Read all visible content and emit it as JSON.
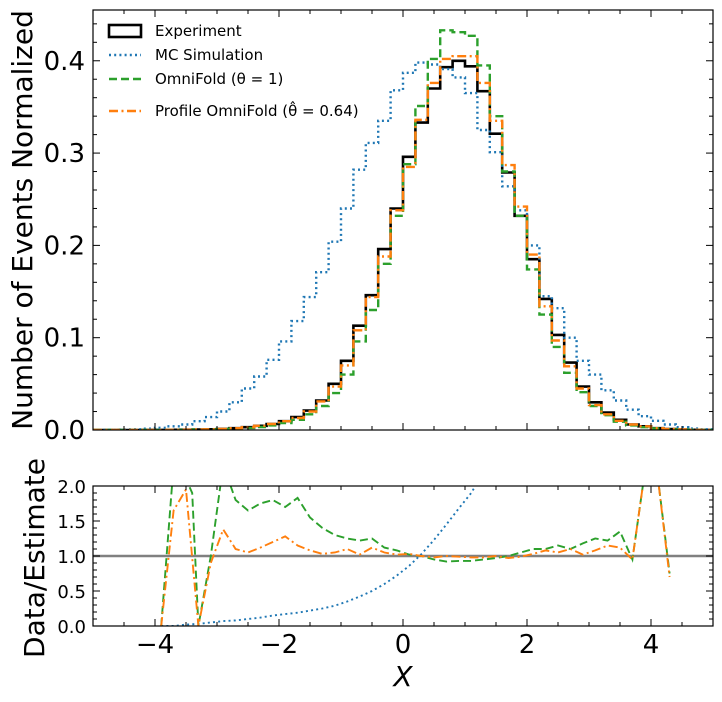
{
  "chart_data": [
    {
      "type": "line",
      "panel": "main",
      "ylabel": "Number of Events Normalized",
      "xlim": [
        -5,
        5
      ],
      "ylim": [
        0,
        0.455
      ],
      "xticks": [
        -4,
        -2,
        0,
        2,
        4
      ],
      "yticks": [
        0.0,
        0.1,
        0.2,
        0.3,
        0.4
      ],
      "ytick_labels": [
        "0.0",
        "0.1",
        "0.2",
        "0.3",
        "0.4"
      ],
      "bin_edges": [
        -5.0,
        -4.8,
        -4.6,
        -4.4,
        -4.2,
        -4.0,
        -3.8,
        -3.6,
        -3.4,
        -3.2,
        -3.0,
        -2.8,
        -2.6,
        -2.4,
        -2.2,
        -2.0,
        -1.8,
        -1.6,
        -1.4,
        -1.2,
        -1.0,
        -0.8,
        -0.6,
        -0.4,
        -0.2,
        0.0,
        0.2,
        0.4,
        0.6,
        0.8,
        1.0,
        1.2,
        1.4,
        1.6,
        1.8,
        2.0,
        2.2,
        2.4,
        2.6,
        2.8,
        3.0,
        3.2,
        3.4,
        3.6,
        3.8,
        4.0,
        4.2,
        4.4,
        4.6,
        4.8,
        5.0
      ],
      "legend_position": "top-left",
      "series": [
        {
          "name": "Experiment",
          "style": "solid",
          "color": "#000000",
          "values": [
            0.0,
            0.0,
            0.0,
            0.0,
            0.0001,
            0.0001,
            0.0002,
            0.0003,
            0.0005,
            0.0008,
            0.0012,
            0.002,
            0.003,
            0.0045,
            0.0065,
            0.0095,
            0.014,
            0.021,
            0.032,
            0.05,
            0.075,
            0.113,
            0.146,
            0.196,
            0.24,
            0.296,
            0.333,
            0.37,
            0.393,
            0.4,
            0.394,
            0.367,
            0.321,
            0.279,
            0.232,
            0.185,
            0.142,
            0.103,
            0.073,
            0.047,
            0.03,
            0.019,
            0.011,
            0.006,
            0.004,
            0.002,
            0.001,
            0.0005,
            0.0002,
            0.0001
          ]
        },
        {
          "name": "MC Simulation",
          "style": "dotted",
          "color": "#1f77b4",
          "values": [
            0.0001,
            0.0002,
            0.0004,
            0.0008,
            0.0014,
            0.0024,
            0.004,
            0.006,
            0.0095,
            0.014,
            0.02,
            0.03,
            0.045,
            0.058,
            0.076,
            0.096,
            0.118,
            0.144,
            0.171,
            0.204,
            0.24,
            0.282,
            0.311,
            0.335,
            0.368,
            0.387,
            0.398,
            0.396,
            0.391,
            0.382,
            0.365,
            0.325,
            0.301,
            0.264,
            0.238,
            0.2,
            0.145,
            0.132,
            0.1,
            0.075,
            0.06,
            0.043,
            0.032,
            0.022,
            0.015,
            0.01,
            0.006,
            0.003,
            0.0015,
            0.0008
          ]
        },
        {
          "name": "OmniFold (θ = 1)",
          "style": "dashed",
          "color": "#2ca02c",
          "values": [
            0.0,
            0.0,
            0.0,
            0.0,
            0.0,
            0.0,
            0.0001,
            0.0002,
            0.0004,
            0.0006,
            0.001,
            0.0015,
            0.0022,
            0.0033,
            0.005,
            0.0075,
            0.011,
            0.017,
            0.026,
            0.04,
            0.06,
            0.096,
            0.13,
            0.18,
            0.232,
            0.288,
            0.351,
            0.402,
            0.433,
            0.431,
            0.427,
            0.395,
            0.34,
            0.28,
            0.232,
            0.174,
            0.125,
            0.09,
            0.062,
            0.041,
            0.026,
            0.016,
            0.009,
            0.005,
            0.003,
            0.0018,
            0.0008,
            0.0004,
            0.0002,
            0.0001
          ]
        },
        {
          "name": "Profile OmniFold (θ̂ = 0.64)",
          "style": "dashdot",
          "color": "#ff7f0e",
          "values": [
            0.0,
            0.0,
            0.0,
            0.0,
            0.0001,
            0.0001,
            0.0002,
            0.0003,
            0.0005,
            0.0008,
            0.0012,
            0.002,
            0.003,
            0.0045,
            0.0065,
            0.0095,
            0.013,
            0.02,
            0.031,
            0.047,
            0.07,
            0.108,
            0.144,
            0.188,
            0.238,
            0.285,
            0.336,
            0.376,
            0.402,
            0.405,
            0.405,
            0.376,
            0.335,
            0.287,
            0.242,
            0.19,
            0.134,
            0.097,
            0.069,
            0.045,
            0.027,
            0.017,
            0.01,
            0.006,
            0.004,
            0.002,
            0.001,
            0.0005,
            0.0002,
            0.0001
          ]
        }
      ]
    },
    {
      "type": "line",
      "panel": "ratio",
      "xlabel": "X",
      "ylabel": "Data/Estimate",
      "xlim": [
        -5,
        5
      ],
      "ylim": [
        0,
        2
      ],
      "xticks": [
        -4,
        -2,
        0,
        2,
        4
      ],
      "xtick_labels": [
        "−4",
        "−2",
        "0",
        "2",
        "4"
      ],
      "yticks": [
        0.0,
        0.5,
        1.0,
        1.5,
        2.0
      ],
      "ytick_labels": [
        "0.0",
        "0.5",
        "1.0",
        "1.5",
        "2.0"
      ],
      "reference_line": 1.0,
      "series": [
        {
          "name": "MC Simulation",
          "style": "dotted",
          "color": "#1f77b4",
          "x": [
            -3.9,
            -3.7,
            -3.5,
            -3.3,
            -3.1,
            -2.9,
            -2.7,
            -2.5,
            -2.3,
            -2.1,
            -1.9,
            -1.7,
            -1.5,
            -1.3,
            -1.1,
            -0.9,
            -0.7,
            -0.5,
            -0.3,
            -0.1,
            0.1,
            0.3,
            0.5,
            0.7,
            0.9,
            1.1,
            1.3
          ],
          "y": [
            0.0,
            0.0,
            0.02,
            0.03,
            0.05,
            0.07,
            0.08,
            0.1,
            0.12,
            0.15,
            0.17,
            0.19,
            0.22,
            0.25,
            0.29,
            0.35,
            0.42,
            0.5,
            0.6,
            0.72,
            0.86,
            1.03,
            1.23,
            1.45,
            1.68,
            1.9,
            2.2
          ]
        },
        {
          "name": "OmniFold (θ = 1)",
          "style": "dashed",
          "color": "#2ca02c",
          "x": [
            -3.9,
            -3.7,
            -3.6,
            -3.4,
            -3.3,
            -3.1,
            -2.9,
            -2.7,
            -2.5,
            -2.3,
            -2.1,
            -1.9,
            -1.7,
            -1.5,
            -1.3,
            -1.1,
            -0.9,
            -0.7,
            -0.5,
            -0.3,
            -0.1,
            0.1,
            0.3,
            0.5,
            0.7,
            0.9,
            1.1,
            1.3,
            1.5,
            1.7,
            1.9,
            2.1,
            2.3,
            2.5,
            2.7,
            2.9,
            3.1,
            3.3,
            3.5,
            3.7,
            3.9,
            4.1,
            4.3
          ],
          "y": [
            0.0,
            2.3,
            2.3,
            1.9,
            0.0,
            1.0,
            2.3,
            1.8,
            1.65,
            1.75,
            1.8,
            1.7,
            1.83,
            1.55,
            1.4,
            1.3,
            1.25,
            1.22,
            1.25,
            1.12,
            1.08,
            1.02,
            1.0,
            0.95,
            0.92,
            0.93,
            0.93,
            0.95,
            0.97,
            1.0,
            1.05,
            1.1,
            1.1,
            1.15,
            1.1,
            1.18,
            1.25,
            1.22,
            1.35,
            0.95,
            2.2,
            2.2,
            0.75
          ]
        },
        {
          "name": "Profile OmniFold (θ̂ = 0.64)",
          "style": "dashdot",
          "color": "#ff7f0e",
          "x": [
            -3.9,
            -3.7,
            -3.5,
            -3.3,
            -3.1,
            -2.9,
            -2.7,
            -2.5,
            -2.3,
            -2.1,
            -1.9,
            -1.7,
            -1.5,
            -1.3,
            -1.1,
            -0.9,
            -0.7,
            -0.5,
            -0.3,
            -0.1,
            0.1,
            0.3,
            0.5,
            0.7,
            0.9,
            1.1,
            1.3,
            1.5,
            1.7,
            1.9,
            2.1,
            2.3,
            2.5,
            2.7,
            2.9,
            3.1,
            3.3,
            3.5,
            3.7,
            3.9,
            4.1,
            4.3
          ],
          "y": [
            0.0,
            1.65,
            1.95,
            0.0,
            0.9,
            1.38,
            1.1,
            1.05,
            1.12,
            1.2,
            1.28,
            1.15,
            1.08,
            1.03,
            1.05,
            1.1,
            1.02,
            1.12,
            1.05,
            1.02,
            1.03,
            1.0,
            0.98,
            1.0,
            0.99,
            0.98,
            0.98,
            1.0,
            0.97,
            0.99,
            1.03,
            1.08,
            1.05,
            1.1,
            1.02,
            1.08,
            1.15,
            1.12,
            0.95,
            2.2,
            2.2,
            0.7
          ]
        }
      ]
    }
  ]
}
